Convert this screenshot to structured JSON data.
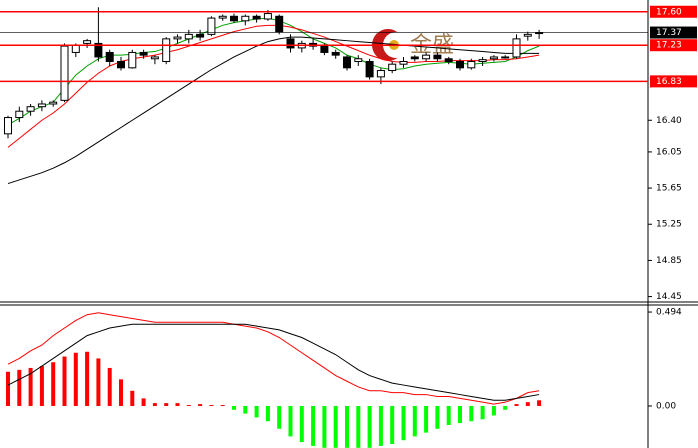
{
  "chart_data": [
    {
      "type": "candlestick",
      "watermark": "金盛",
      "open": [
        16.25,
        16.43,
        16.5,
        16.55,
        16.58,
        16.62,
        17.15,
        17.25,
        17.25,
        17.15,
        17.05,
        16.98,
        17.15,
        17.08,
        17.05,
        17.3,
        17.3,
        17.35,
        17.35,
        17.53,
        17.55,
        17.5,
        17.55,
        17.52,
        17.55,
        17.3,
        17.2,
        17.25,
        17.22,
        17.15,
        17.1,
        17.05,
        17.05,
        16.88,
        16.95,
        17.02,
        17.1,
        17.08,
        17.12,
        17.08,
        17.05,
        16.98,
        17.05,
        17.08,
        17.1,
        17.1,
        17.33,
        17.37
      ],
      "high": [
        16.45,
        16.55,
        16.58,
        16.62,
        16.62,
        17.25,
        17.25,
        17.3,
        17.65,
        17.18,
        17.1,
        17.18,
        17.18,
        17.12,
        17.32,
        17.35,
        17.4,
        17.4,
        17.55,
        17.57,
        17.58,
        17.57,
        17.57,
        17.62,
        17.57,
        17.35,
        17.28,
        17.3,
        17.25,
        17.18,
        17.12,
        17.12,
        17.08,
        16.98,
        17.05,
        17.1,
        17.12,
        17.15,
        17.15,
        17.1,
        17.08,
        17.08,
        17.1,
        17.12,
        17.12,
        17.35,
        17.38,
        17.4
      ],
      "low": [
        16.2,
        16.38,
        16.45,
        16.5,
        16.55,
        16.6,
        17.1,
        17.2,
        17.05,
        17.0,
        16.95,
        16.97,
        17.08,
        17.02,
        17.02,
        17.25,
        17.25,
        17.28,
        17.33,
        17.5,
        17.48,
        17.45,
        17.48,
        17.5,
        17.35,
        17.15,
        17.15,
        17.18,
        17.12,
        17.08,
        16.95,
        17.0,
        16.85,
        16.8,
        16.92,
        16.98,
        17.05,
        17.05,
        17.05,
        17.02,
        16.95,
        16.96,
        17.0,
        17.05,
        17.08,
        17.08,
        17.28,
        17.3
      ],
      "close": [
        16.43,
        16.5,
        16.55,
        16.58,
        16.6,
        17.22,
        17.23,
        17.28,
        17.1,
        17.05,
        16.98,
        17.15,
        17.12,
        17.1,
        17.3,
        17.32,
        17.35,
        17.32,
        17.53,
        17.55,
        17.5,
        17.55,
        17.52,
        17.58,
        17.38,
        17.2,
        17.25,
        17.22,
        17.15,
        17.12,
        16.98,
        17.08,
        16.88,
        16.95,
        17.02,
        17.05,
        17.08,
        17.12,
        17.08,
        17.05,
        16.98,
        17.05,
        17.07,
        17.1,
        17.09,
        17.3,
        17.35,
        17.37
      ],
      "up_color": "#ffffff",
      "down_color": "#000000",
      "series": [
        {
          "color": "#00a000",
          "values": [
            16.35,
            16.42,
            16.5,
            16.55,
            16.6,
            16.75,
            16.9,
            17.0,
            17.08,
            17.12,
            17.12,
            17.13,
            17.15,
            17.16,
            17.2,
            17.25,
            17.3,
            17.35,
            17.4,
            17.45,
            17.48,
            17.5,
            17.52,
            17.53,
            17.5,
            17.45,
            17.38,
            17.3,
            17.25,
            17.2,
            17.12,
            17.08,
            17.02,
            16.98,
            16.96,
            16.97,
            17.0,
            17.02,
            17.03,
            17.04,
            17.03,
            17.02,
            17.03,
            17.04,
            17.05,
            17.1,
            17.17,
            17.22
          ]
        },
        {
          "color": "#ff0000",
          "values": [
            16.1,
            16.2,
            16.3,
            16.4,
            16.48,
            16.58,
            16.7,
            16.82,
            16.92,
            17.0,
            17.05,
            17.08,
            17.1,
            17.12,
            17.15,
            17.18,
            17.22,
            17.26,
            17.3,
            17.34,
            17.38,
            17.41,
            17.44,
            17.45,
            17.45,
            17.43,
            17.4,
            17.36,
            17.32,
            17.27,
            17.22,
            17.17,
            17.12,
            17.08,
            17.05,
            17.04,
            17.04,
            17.05,
            17.05,
            17.06,
            17.06,
            17.06,
            17.06,
            17.07,
            17.07,
            17.08,
            17.1,
            17.12
          ]
        },
        {
          "color": "#000000",
          "values": [
            15.7,
            15.74,
            15.78,
            15.82,
            15.87,
            15.93,
            16.0,
            16.08,
            16.16,
            16.24,
            16.32,
            16.4,
            16.48,
            16.56,
            16.64,
            16.72,
            16.8,
            16.88,
            16.96,
            17.03,
            17.1,
            17.16,
            17.22,
            17.27,
            17.3,
            17.32,
            17.32,
            17.31,
            17.3,
            17.29,
            17.28,
            17.27,
            17.26,
            17.25,
            17.24,
            17.23,
            17.22,
            17.21,
            17.2,
            17.19,
            17.18,
            17.17,
            17.16,
            17.15,
            17.14,
            17.14,
            17.14,
            17.14
          ]
        }
      ],
      "levels": [
        {
          "value": 17.6,
          "label": "17.60",
          "color": "#ff0000"
        },
        {
          "value": 17.37,
          "label": "17.37",
          "color": "#000000"
        },
        {
          "value": 17.23,
          "label": "17.23",
          "color": "#ff0000"
        },
        {
          "value": 16.83,
          "label": "16.83",
          "color": "#ff0000"
        }
      ],
      "ylim": [
        14.39,
        17.73
      ],
      "yticks": [
        14.45,
        14.85,
        15.25,
        15.65,
        16.05,
        {
          "value": 16.4,
          "label": "16.40"
        }
      ]
    },
    {
      "type": "bar",
      "values": [
        0.18,
        0.19,
        0.2,
        0.21,
        0.23,
        0.26,
        0.28,
        0.285,
        0.25,
        0.2,
        0.14,
        0.08,
        0.04,
        0.015,
        0.015,
        0.015,
        0.005,
        0.01,
        0.005,
        0.005,
        -0.02,
        -0.04,
        -0.06,
        -0.08,
        -0.12,
        -0.16,
        -0.19,
        -0.21,
        -0.22,
        -0.22,
        -0.22,
        -0.22,
        -0.22,
        -0.21,
        -0.2,
        -0.18,
        -0.16,
        -0.14,
        -0.12,
        -0.1,
        -0.09,
        -0.08,
        -0.07,
        -0.05,
        -0.02,
        0.01,
        0.02,
        0.03
      ],
      "up_color": "#ff0000",
      "down_color": "#00ff00",
      "series": [
        {
          "color": "#ff0000",
          "values": [
            0.22,
            0.25,
            0.29,
            0.32,
            0.37,
            0.41,
            0.45,
            0.48,
            0.49,
            0.48,
            0.47,
            0.46,
            0.45,
            0.44,
            0.44,
            0.44,
            0.44,
            0.44,
            0.44,
            0.44,
            0.43,
            0.42,
            0.41,
            0.39,
            0.36,
            0.32,
            0.28,
            0.24,
            0.2,
            0.16,
            0.13,
            0.1,
            0.08,
            0.08,
            0.07,
            0.07,
            0.06,
            0.06,
            0.05,
            0.05,
            0.04,
            0.03,
            0.02,
            0.01,
            0.02,
            0.04,
            0.07,
            0.08
          ]
        },
        {
          "color": "#000000",
          "values": [
            0.11,
            0.14,
            0.17,
            0.21,
            0.25,
            0.29,
            0.33,
            0.37,
            0.39,
            0.41,
            0.42,
            0.43,
            0.43,
            0.43,
            0.43,
            0.43,
            0.43,
            0.43,
            0.43,
            0.43,
            0.43,
            0.43,
            0.42,
            0.41,
            0.4,
            0.38,
            0.36,
            0.33,
            0.3,
            0.27,
            0.23,
            0.19,
            0.16,
            0.14,
            0.12,
            0.11,
            0.1,
            0.09,
            0.08,
            0.07,
            0.06,
            0.05,
            0.04,
            0.03,
            0.03,
            0.04,
            0.05,
            0.06
          ]
        }
      ],
      "ylim": [
        -0.221,
        0.531
      ],
      "yticks": [
        {
          "value": 0,
          "label": "0.00"
        },
        0.494
      ]
    }
  ]
}
